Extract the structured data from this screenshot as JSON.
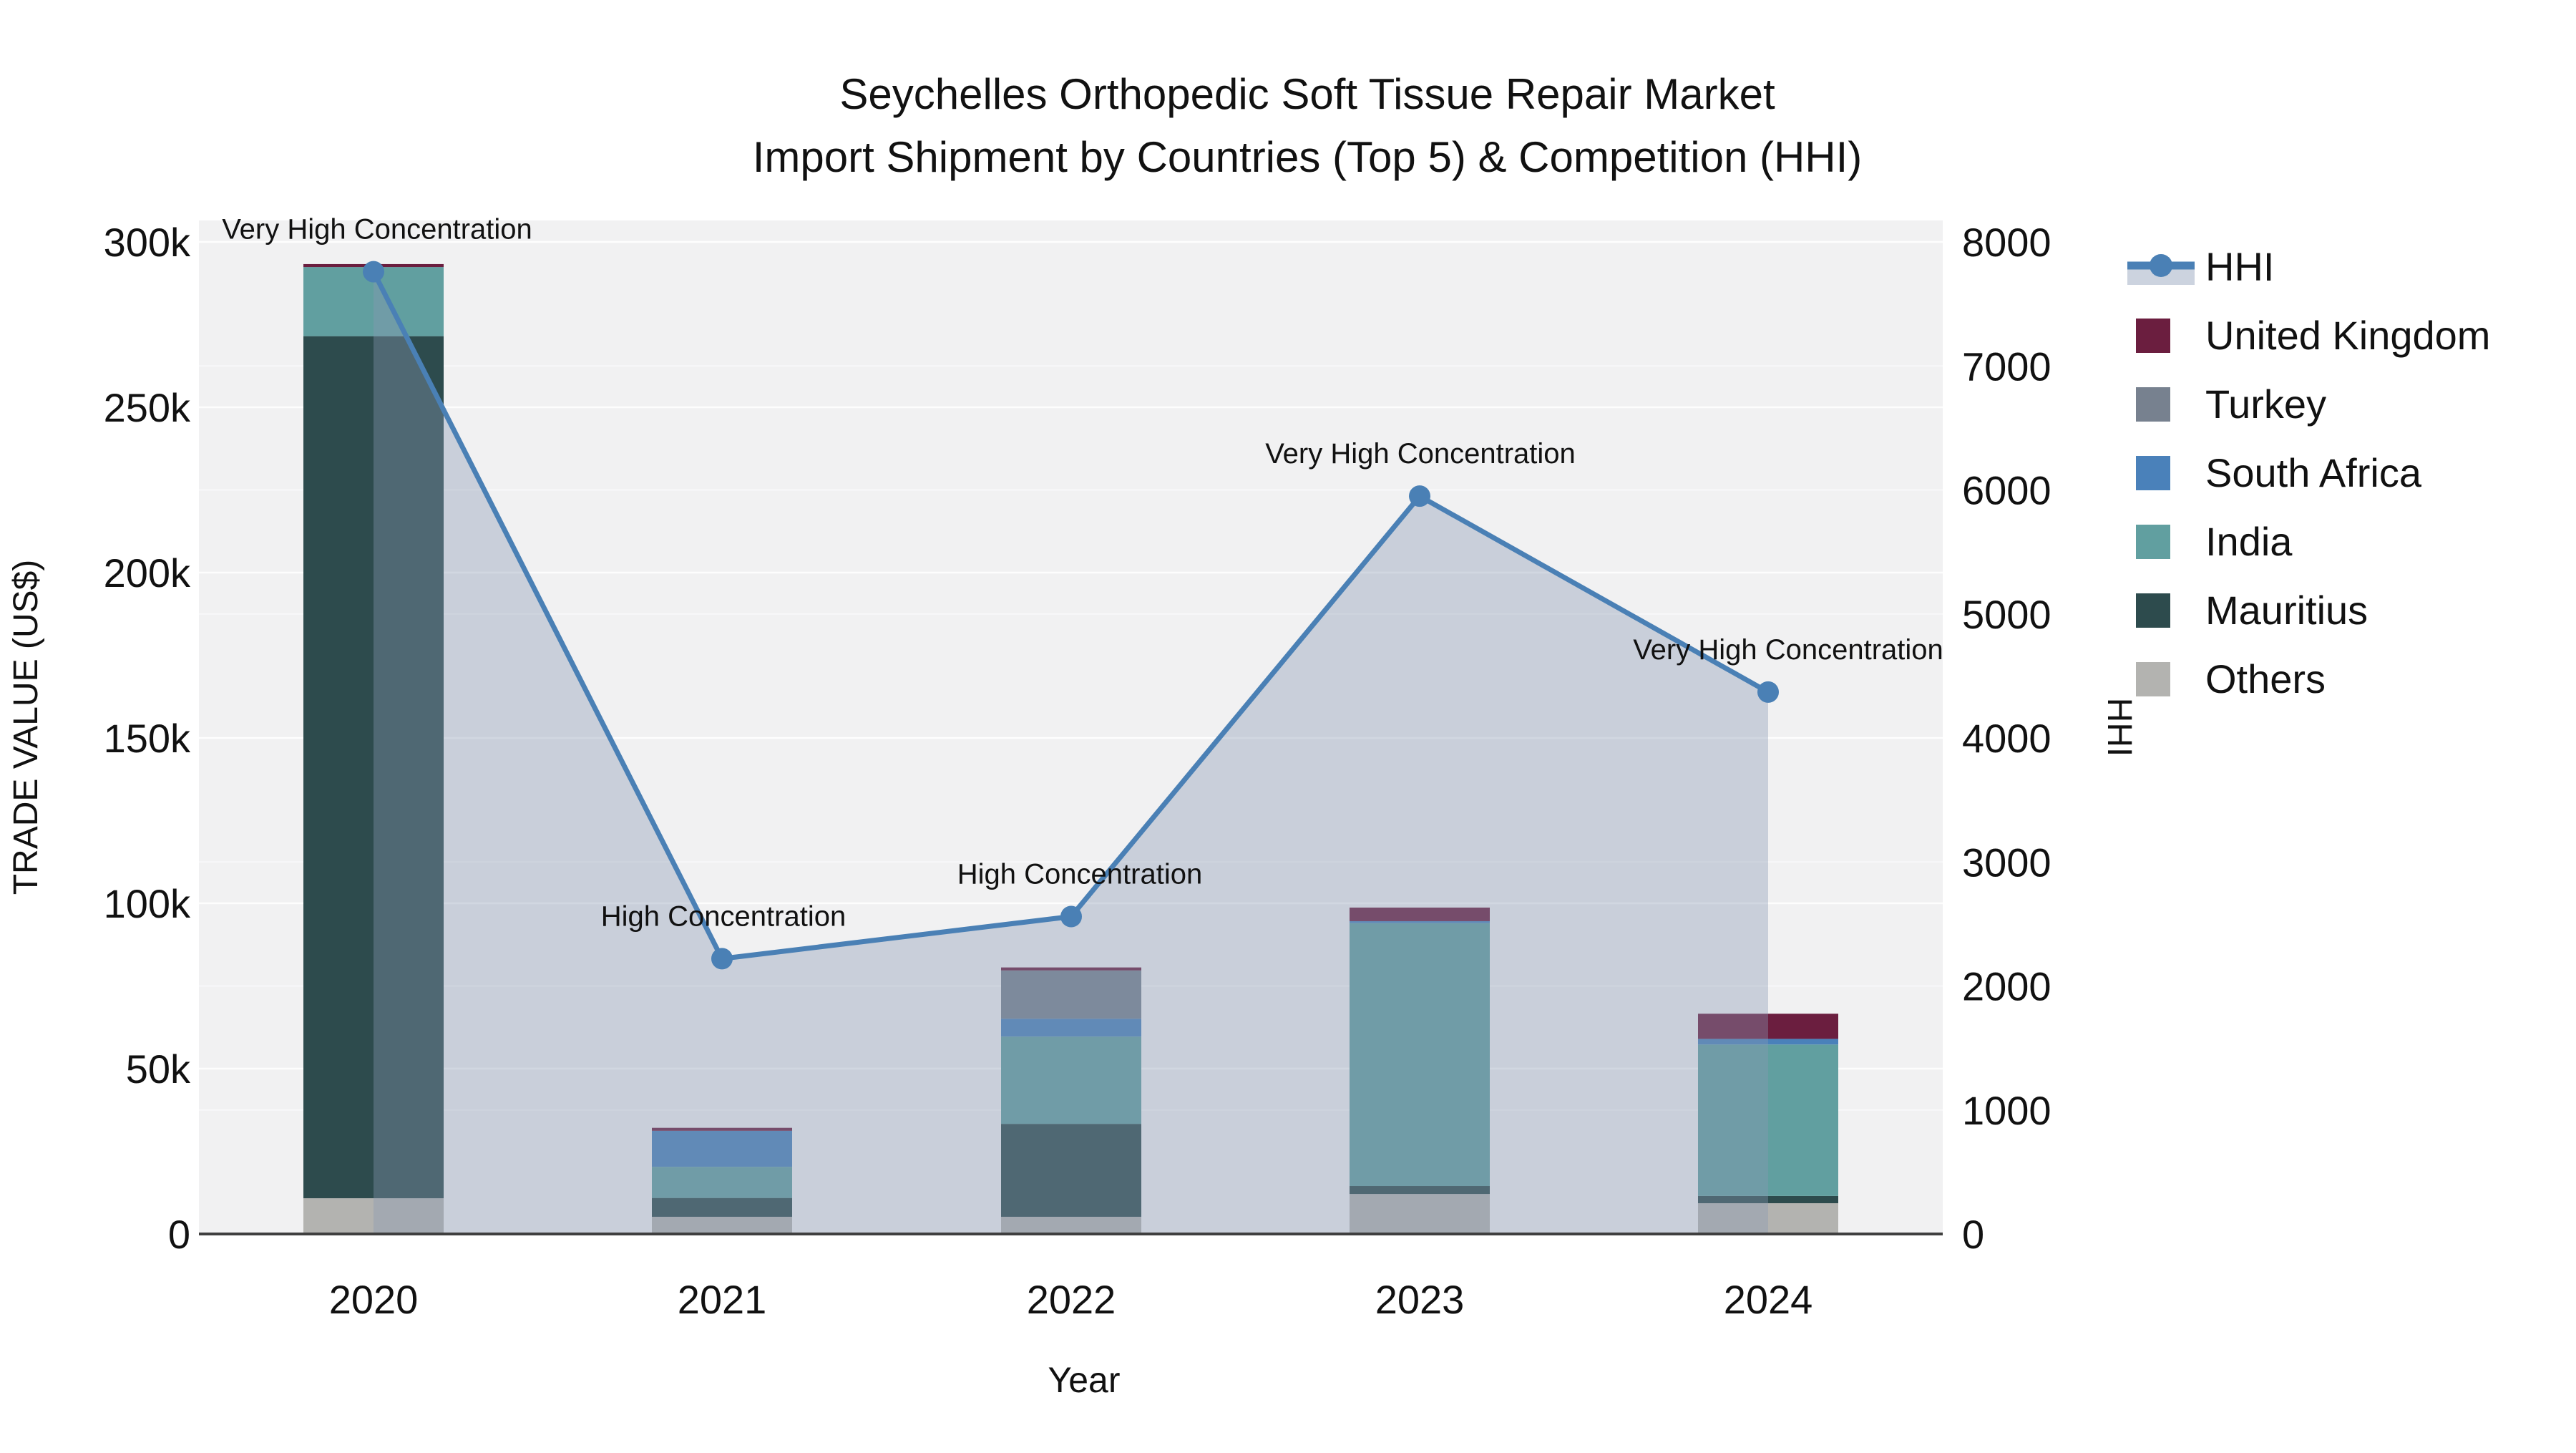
{
  "title": {
    "line1": "Seychelles Orthopedic Soft Tissue Repair Market",
    "line2": "Import Shipment by Countries (Top 5) & Competition (HHI)"
  },
  "axes": {
    "left": {
      "title": "TRADE VALUE (US$)",
      "tick_labels": [
        "0",
        "50k",
        "100k",
        "150k",
        "200k",
        "250k",
        "300k"
      ],
      "max_thousands": 300
    },
    "right": {
      "title": "HHI",
      "tick_labels": [
        "0",
        "1000",
        "2000",
        "3000",
        "4000",
        "5000",
        "6000",
        "7000",
        "8000"
      ],
      "max": 8000
    },
    "x": {
      "title": "Year"
    }
  },
  "legend": {
    "items": [
      {
        "label": "HHI",
        "type": "line",
        "color": "#4a80b5"
      },
      {
        "label": "United Kingdom",
        "type": "square",
        "color": "#6b1e3f"
      },
      {
        "label": "Turkey",
        "type": "square",
        "color": "#77818f"
      },
      {
        "label": "South Africa",
        "type": "square",
        "color": "#4a81ba"
      },
      {
        "label": "India",
        "type": "square",
        "color": "#619fa0"
      },
      {
        "label": "Mauritius",
        "type": "square",
        "color": "#2d4b4d"
      },
      {
        "label": "Others",
        "type": "square",
        "color": "#b3b3b0"
      }
    ]
  },
  "chart_data": {
    "type": "bar+line",
    "title": "Seychelles Orthopedic Soft Tissue Repair Market — Import Shipment by Countries (Top 5) & Competition (HHI)",
    "categories": [
      "2020",
      "2021",
      "2022",
      "2023",
      "2024"
    ],
    "bar_unit": "US$ thousands",
    "stack_order_bottom_to_top": [
      "Others",
      "Mauritius",
      "India",
      "South Africa",
      "Turkey",
      "United Kingdom"
    ],
    "series": [
      {
        "name": "United Kingdom",
        "color": "#6b1e3f",
        "values": [
          0.9,
          0.9,
          0.9,
          4.1,
          7.6
        ]
      },
      {
        "name": "Turkey",
        "color": "#77818f",
        "values": [
          0,
          0,
          14.6,
          0,
          0
        ]
      },
      {
        "name": "South Africa",
        "color": "#4a81ba",
        "values": [
          0,
          10.9,
          5.4,
          0.6,
          1.7
        ]
      },
      {
        "name": "India",
        "color": "#619fa0",
        "values": [
          20.9,
          9.4,
          26.4,
          79.5,
          45.8
        ]
      },
      {
        "name": "Mauritius",
        "color": "#2d4b4d",
        "values": [
          260.7,
          5.7,
          28.1,
          2.4,
          2.2
        ]
      },
      {
        "name": "Others",
        "color": "#b3b3b0",
        "values": [
          10.8,
          5.2,
          5.2,
          12.1,
          9.3
        ]
      }
    ],
    "bar_totals_thousands": [
      293.3,
      32.1,
      80.6,
      98.7,
      66.6
    ],
    "hhi_line": {
      "name": "HHI",
      "color": "#4a80b5",
      "area_fill": "rgba(136,152,178,0.38)",
      "values": [
        7760,
        2220,
        2560,
        5950,
        4370
      ]
    },
    "annotations": [
      {
        "text": "Very High Concentration",
        "year": "2020"
      },
      {
        "text": "High Concentration",
        "year": "2021"
      },
      {
        "text": "High Concentration",
        "year": "2022"
      },
      {
        "text": "Very High Concentration",
        "year": "2023"
      },
      {
        "text": "Very High Concentration",
        "year": "2024"
      }
    ],
    "xlabel": "Year",
    "ylabel_left": "TRADE VALUE (US$)",
    "ylabel_right": "HHI",
    "ylim_left_thousands": [
      0,
      300
    ],
    "ylim_right": [
      0,
      8000
    ],
    "grid": true,
    "legend_position": "right"
  },
  "style": {
    "plot_bg": "#f1f1f2",
    "grid_color": "#ffffff",
    "axis_line_color": "#3f3f3f",
    "text_color": "#111111"
  }
}
